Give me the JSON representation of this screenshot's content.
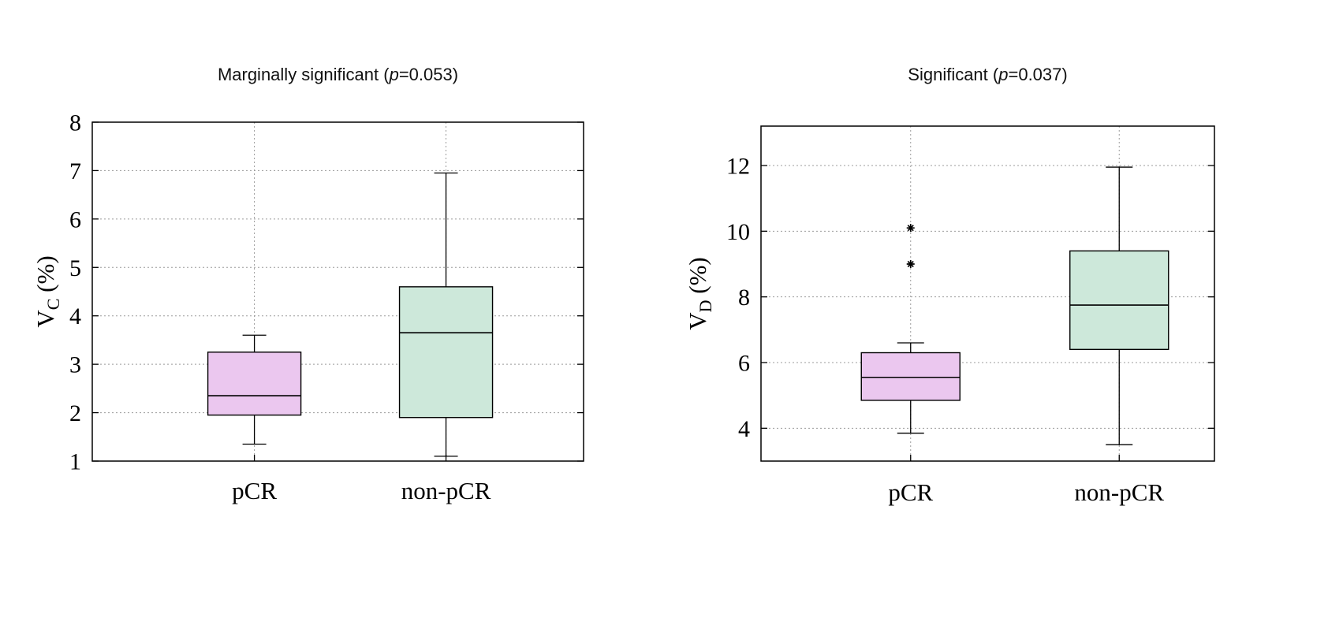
{
  "page": {
    "background": "#ffffff"
  },
  "chart_data": [
    {
      "type": "boxplot",
      "title": "Marginally significant (p=0.053)",
      "title_parts": {
        "prefix": "Marginally significant (",
        "italic": "p",
        "suffix": "=0.053)"
      },
      "ylabel": "V_C (%)",
      "ylabel_parts": {
        "main": "V",
        "sub": "C",
        "suffix": " (%)"
      },
      "xlabel": "",
      "categories": [
        "pCR",
        "non-pCR"
      ],
      "ylim": [
        1,
        8
      ],
      "yticks": [
        1,
        2,
        3,
        4,
        5,
        6,
        7,
        8
      ],
      "grid": true,
      "legend": "none",
      "box_colors": [
        "#ebc7ef",
        "#cde8da"
      ],
      "series": [
        {
          "category": "pCR",
          "whisker_low": 1.35,
          "q1": 1.95,
          "median": 2.35,
          "q3": 3.25,
          "whisker_high": 3.6,
          "outliers": []
        },
        {
          "category": "non-pCR",
          "whisker_low": 1.1,
          "q1": 1.9,
          "median": 3.65,
          "q3": 4.6,
          "whisker_high": 6.95,
          "outliers": []
        }
      ]
    },
    {
      "type": "boxplot",
      "title": "Significant (p=0.037)",
      "title_parts": {
        "prefix": "Significant (",
        "italic": "p",
        "suffix": "=0.037)"
      },
      "ylabel": "V_D (%)",
      "ylabel_parts": {
        "main": "V",
        "sub": "D",
        "suffix": " (%)"
      },
      "xlabel": "",
      "categories": [
        "pCR",
        "non-pCR"
      ],
      "ylim": [
        3,
        13.2
      ],
      "yticks": [
        4,
        6,
        8,
        10,
        12
      ],
      "grid": true,
      "legend": "none",
      "box_colors": [
        "#ebc7ef",
        "#cde8da"
      ],
      "series": [
        {
          "category": "pCR",
          "whisker_low": 3.85,
          "q1": 4.85,
          "median": 5.55,
          "q3": 6.3,
          "whisker_high": 6.6,
          "outliers": [
            9.0,
            10.1
          ]
        },
        {
          "category": "non-pCR",
          "whisker_low": 3.5,
          "q1": 6.4,
          "median": 7.75,
          "q3": 9.4,
          "whisker_high": 11.95,
          "outliers": []
        }
      ]
    }
  ]
}
